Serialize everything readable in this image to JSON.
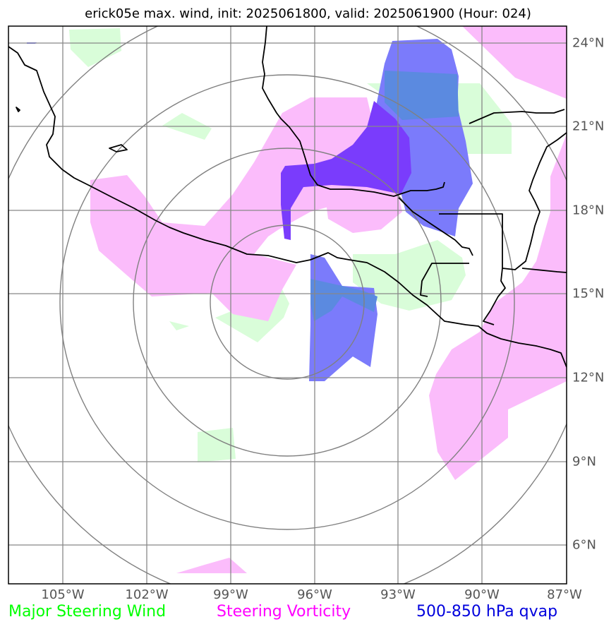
{
  "title": "erick05e max. wind, init: 2025061800, valid: 2025061900 (Hour: 024)",
  "longitude_labels": [
    "105°W",
    "102°W",
    "99°W",
    "96°W",
    "93°W",
    "90°W",
    "87°W"
  ],
  "latitude_labels": [
    "24°N",
    "21°N",
    "18°N",
    "15°N",
    "12°N",
    "9°N",
    "6°N"
  ],
  "legend": {
    "wind": {
      "label": "Major Steering Wind",
      "color": "#00ff00"
    },
    "vorticity": {
      "label": "Steering Vorticity",
      "color": "#ff00ff"
    },
    "qvap": {
      "label": "500-850 hPa qvap",
      "color": "#0000dd"
    }
  },
  "map_extent": {
    "lon_min": -107,
    "lon_max": -87,
    "lat_min": 5,
    "lat_max": 25
  },
  "range_rings_center": {
    "lon": -97,
    "lat": 15
  },
  "colors": {
    "wind_fill": "#d9fdd9",
    "vorticity_fill": "#fbbcfb",
    "qvap_fill": "#7b7bfb",
    "qvap_dense_fill": "#7a3cfc",
    "overlap_fill": "#5b8ae0",
    "grid": "#888888",
    "coast": "#000000"
  }
}
